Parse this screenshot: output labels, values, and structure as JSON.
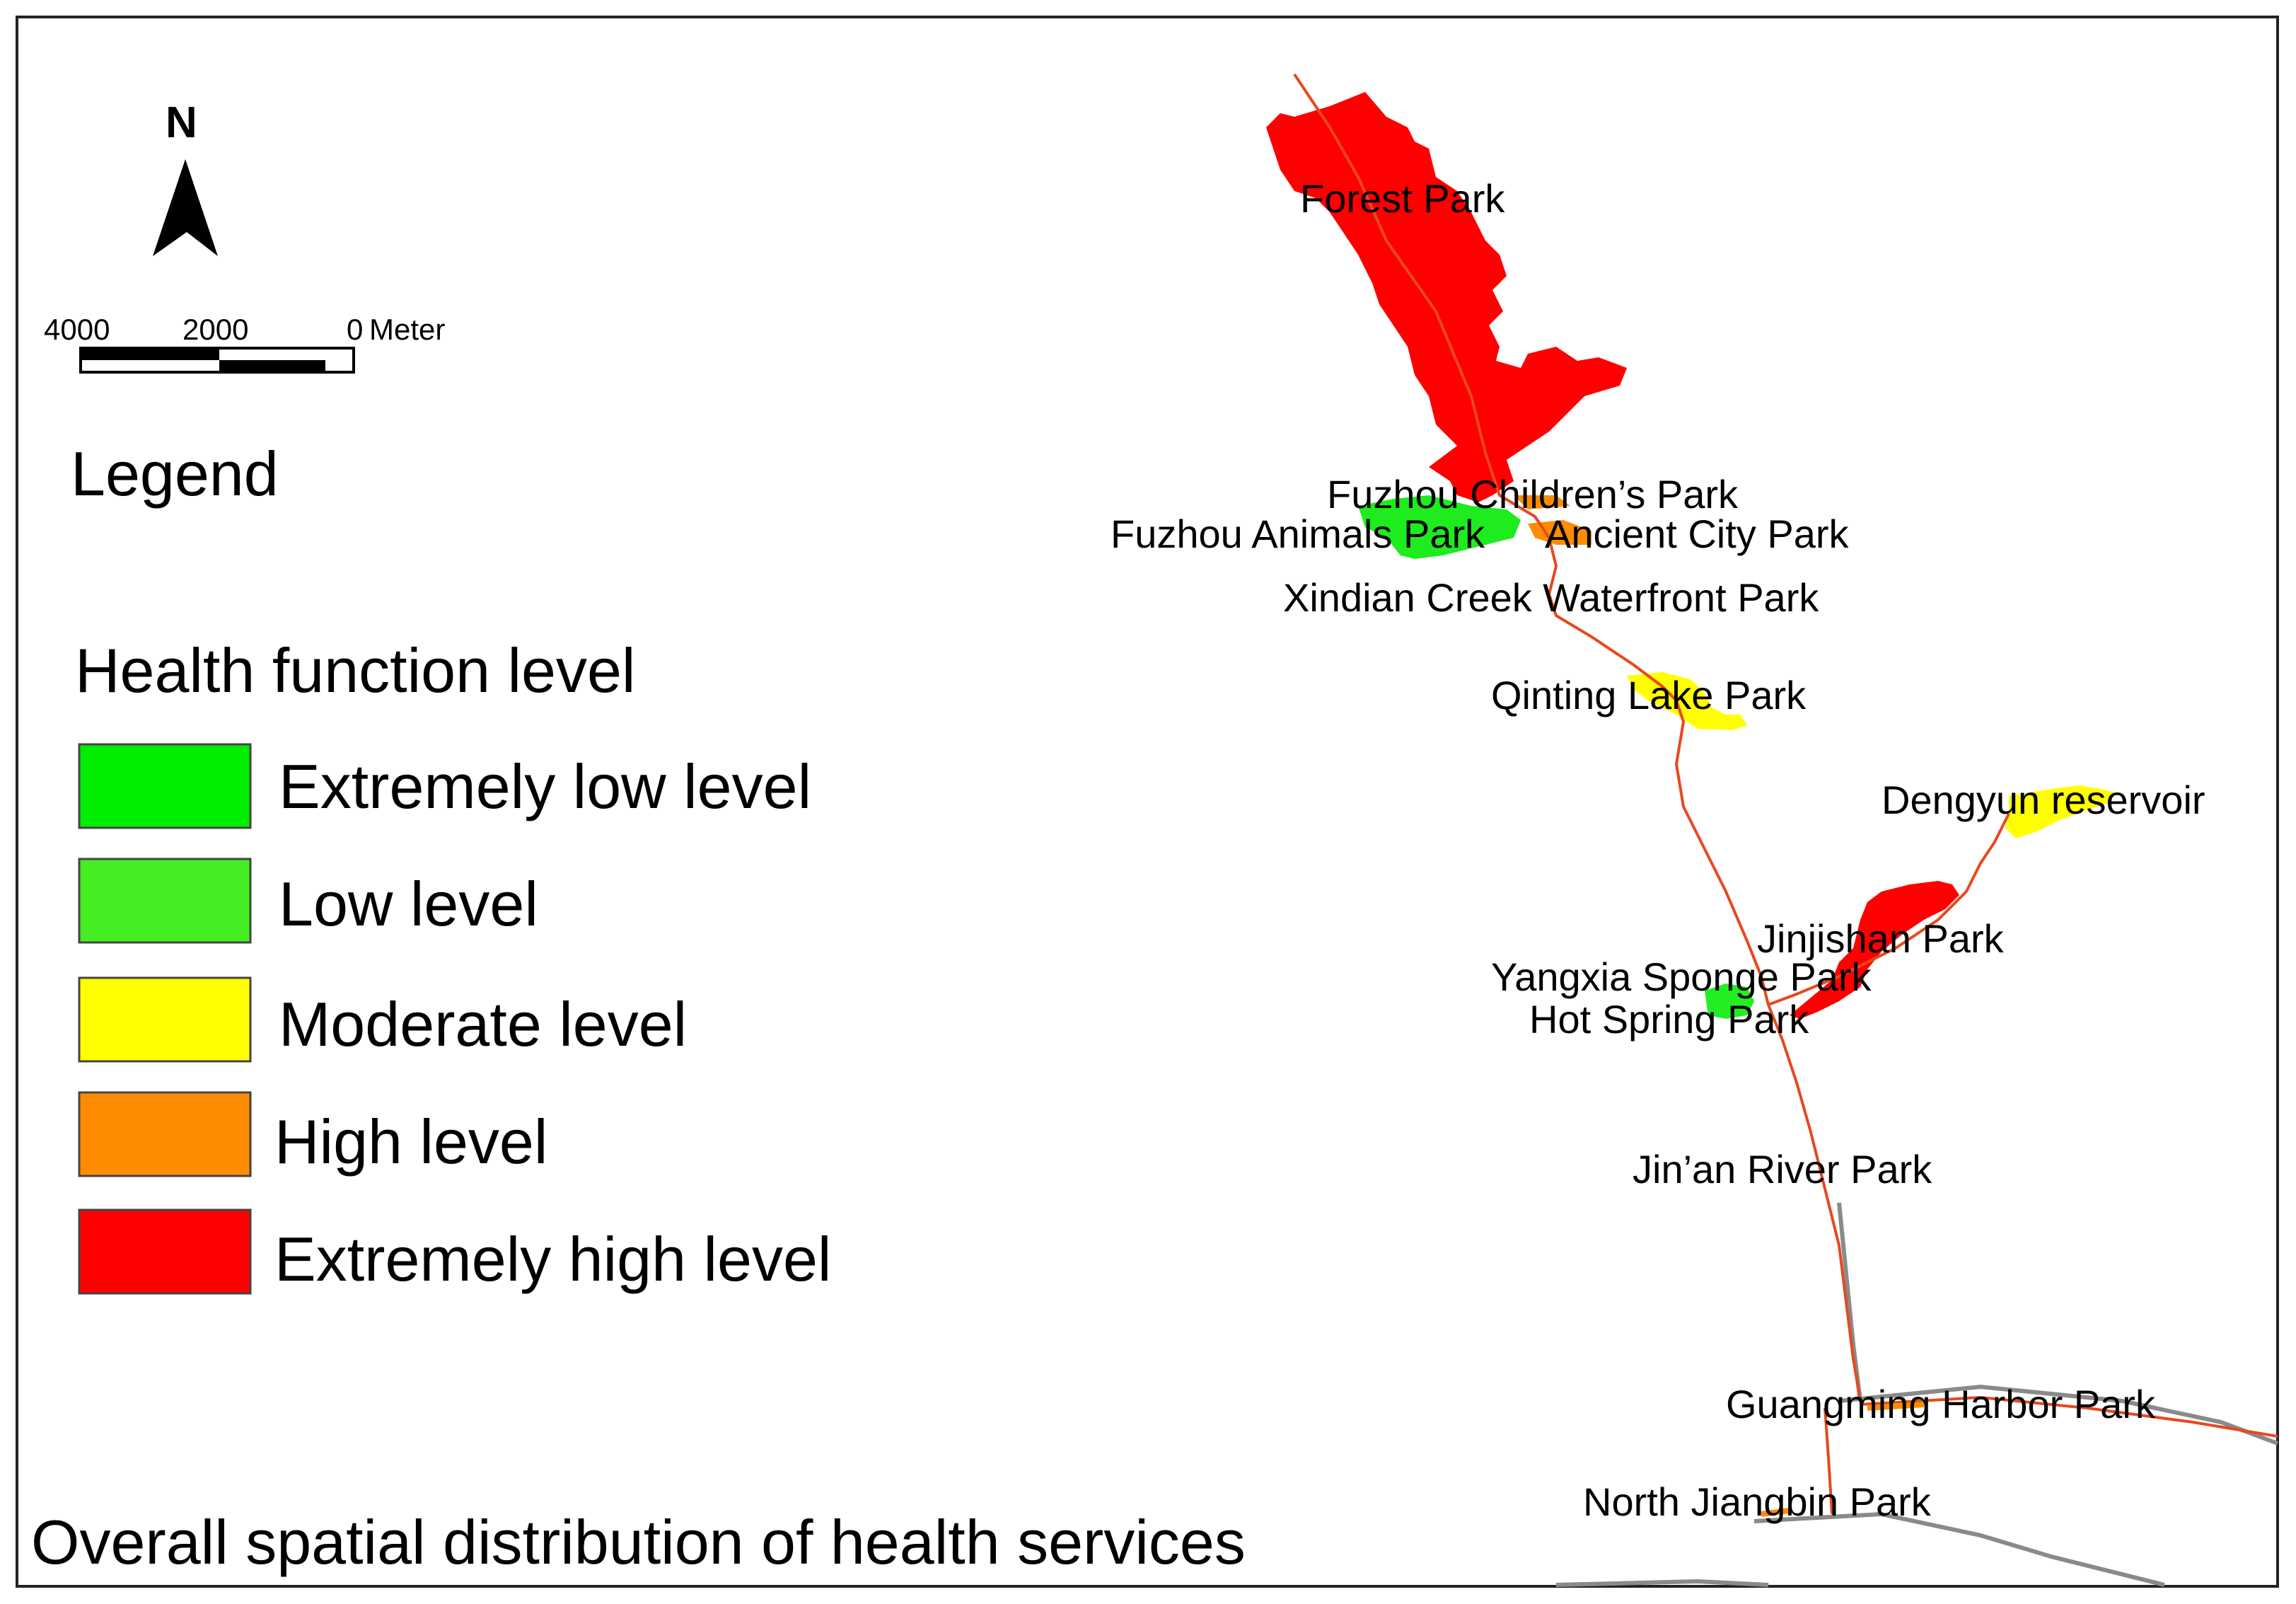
{
  "north_arrow": {
    "label": "N",
    "icon": "north-arrow-icon"
  },
  "scale_bar": {
    "ticks": [
      "4000",
      "2000",
      "0"
    ],
    "unit": "Meter"
  },
  "legend": {
    "title": "Legend",
    "subtitle": "Health function level",
    "items": [
      {
        "label": "Extremely low level",
        "color": "#00ee00"
      },
      {
        "label": "Low level",
        "color": "#44ee22"
      },
      {
        "label": "Moderate level",
        "color": "#ffff00"
      },
      {
        "label": "High level",
        "color": "#ff8c00"
      },
      {
        "label": "Extremely high level",
        "color": "#ff0000"
      }
    ]
  },
  "parks": [
    {
      "name": "Forest Park"
    },
    {
      "name": "Fuzhou Children’s Park"
    },
    {
      "name": "Fuzhou Animals Park"
    },
    {
      "name": "Ancient City Park"
    },
    {
      "name": "Xindian Creek Waterfront Park"
    },
    {
      "name": "Qinting Lake Park"
    },
    {
      "name": "Dengyun reservoir"
    },
    {
      "name": "Jinjishan Park"
    },
    {
      "name": "Yangxia Sponge Park"
    },
    {
      "name": "Hot Spring Park"
    },
    {
      "name": "Jin’an River Park"
    },
    {
      "name": "Guangming Harbor Park"
    },
    {
      "name": "North Jiangbin Park"
    }
  ],
  "map_title": "Overall spatial distribution of health services"
}
